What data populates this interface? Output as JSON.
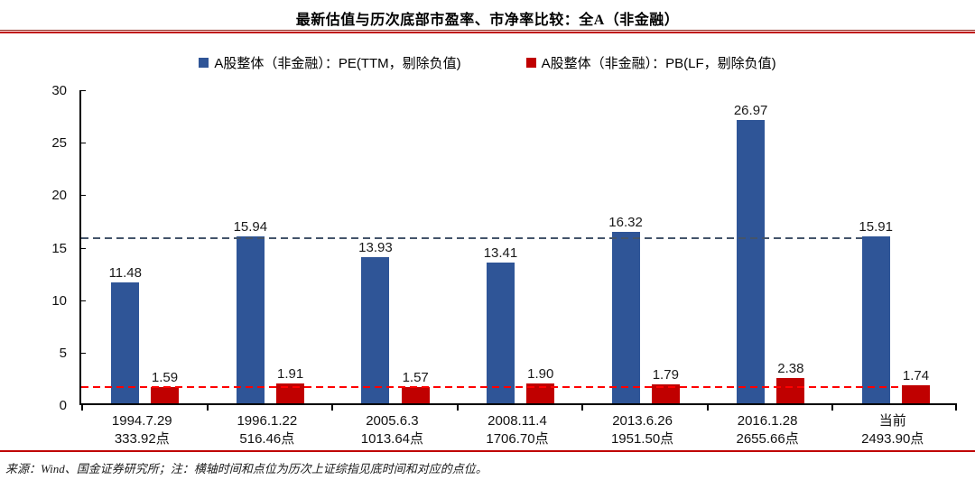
{
  "title": "最新估值与历次底部市盈率、市净率比较：全A（非金融）",
  "legend": {
    "pe": {
      "label": "A股整体（非金融）：PE(TTM，剔除负值)",
      "color": "#2F5597"
    },
    "pb": {
      "label": "A股整体（非金融）：PB(LF，剔除负值)",
      "color": "#C00000"
    }
  },
  "footer": "来源：Wind、国金证券研究所；注：横轴时间和点位为历次上证综指见底时间和对应的点位。",
  "colors": {
    "pe_bar": "#2F5597",
    "pb_bar": "#C00000",
    "pe_ref_line": "#44546A",
    "pb_ref_line": "#FF0000",
    "header_rule": "#C00000",
    "axis": "#000000"
  },
  "chart_data": {
    "type": "bar",
    "title": "最新估值与历次底部市盈率、市净率比较：全A（非金融）",
    "categories": [
      {
        "date": "1994.7.29",
        "points": "333.92点"
      },
      {
        "date": "1996.1.22",
        "points": "516.46点"
      },
      {
        "date": "2005.6.3",
        "points": "1013.64点"
      },
      {
        "date": "2008.11.4",
        "points": "1706.70点"
      },
      {
        "date": "2013.6.26",
        "points": "1951.50点"
      },
      {
        "date": "2016.1.28",
        "points": "2655.66点"
      },
      {
        "date": "当前",
        "points": "2493.90点"
      }
    ],
    "series": [
      {
        "name": "A股整体（非金融）：PE(TTM，剔除负值)",
        "color": "#2F5597",
        "values": [
          11.48,
          15.94,
          13.93,
          13.41,
          16.32,
          26.97,
          15.91
        ],
        "labels": [
          "11.48",
          "15.94",
          "13.93",
          "13.41",
          "16.32",
          "26.97",
          "15.91"
        ]
      },
      {
        "name": "A股整体（非金融）：PB(LF，剔除负值)",
        "color": "#C00000",
        "values": [
          1.59,
          1.91,
          1.57,
          1.9,
          1.79,
          2.38,
          1.74
        ],
        "labels": [
          "1.59",
          "1.91",
          "1.57",
          "1.90",
          "1.79",
          "2.38",
          "1.74"
        ]
      }
    ],
    "ylim": [
      0,
      30
    ],
    "yticks": [
      0,
      5,
      10,
      15,
      20,
      25,
      30
    ],
    "grid": false,
    "legend_position": "top",
    "reference_lines": [
      {
        "series": "PE",
        "value": 15.91,
        "color": "#44546A",
        "style": "dashed"
      },
      {
        "series": "PB",
        "value": 1.74,
        "color": "#FF0000",
        "style": "dashed"
      }
    ]
  }
}
